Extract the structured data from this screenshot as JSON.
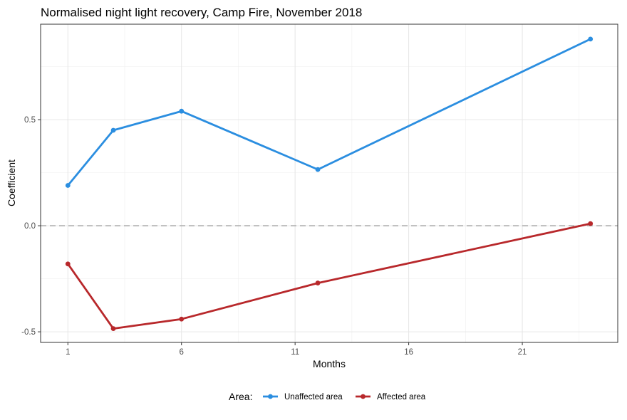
{
  "chart_data": {
    "type": "line",
    "title": "Normalised night light recovery, Camp Fire, November 2018",
    "xlabel": "Months",
    "ylabel": "Coefficient",
    "xlim": [
      -0.2,
      25.2
    ],
    "ylim": [
      -0.55,
      0.95
    ],
    "x_ticks": [
      1,
      6,
      11,
      16,
      21
    ],
    "y_ticks": [
      -0.5,
      0.0,
      0.5
    ],
    "y_tick_labels": [
      "-0.5",
      "0.0",
      "0.5"
    ],
    "x_minor_gridlines": [
      3.5,
      8.5,
      13.5,
      18.5,
      23.5
    ],
    "y_minor_gridlines": [
      -0.25,
      0.25,
      0.75
    ],
    "reference_line": {
      "y": 0,
      "style": "dashed"
    },
    "grid": true,
    "legend": {
      "title": "Area:",
      "position": "bottom"
    },
    "x": [
      1,
      3,
      6,
      12,
      24
    ],
    "series": [
      {
        "name": "Unaffected area",
        "color": "#2b8ee0",
        "values": [
          0.19,
          0.45,
          0.54,
          0.265,
          0.88
        ]
      },
      {
        "name": "Affected area",
        "color": "#b8282b",
        "values": [
          -0.18,
          -0.485,
          -0.44,
          -0.27,
          0.01
        ]
      }
    ]
  }
}
